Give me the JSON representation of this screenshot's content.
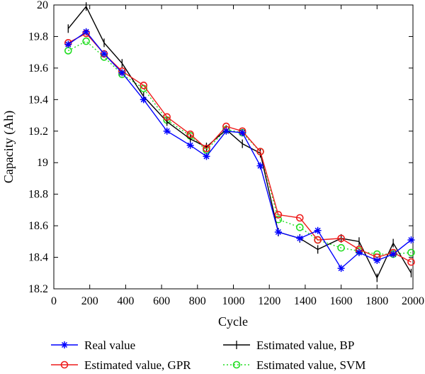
{
  "chart_data": {
    "type": "line",
    "xlabel": "Cycle",
    "ylabel": "Capacity (Ah)",
    "xlim": [
      0,
      2000
    ],
    "ylim": [
      18.2,
      20
    ],
    "xticks": [
      "0",
      "200",
      "400",
      "600",
      "800",
      "1000",
      "1200",
      "1400",
      "1600",
      "1800",
      "2000"
    ],
    "yticks": [
      "18.2",
      "18.4",
      "18.6",
      "18.8",
      "19",
      "19.2",
      "19.4",
      "19.6",
      "19.8",
      "20"
    ],
    "grid": false,
    "legend_position": "bottom",
    "series": [
      {
        "name": "Real value",
        "color": "#0000ff",
        "marker": "asterisk",
        "line": "solid",
        "x": [
          80,
          180,
          280,
          380,
          500,
          630,
          760,
          850,
          960,
          1050,
          1150,
          1250,
          1370,
          1470,
          1600,
          1700,
          1800,
          1890,
          1990
        ],
        "y": [
          19.75,
          19.83,
          19.69,
          19.57,
          19.4,
          19.2,
          19.11,
          19.04,
          19.2,
          19.19,
          18.98,
          18.56,
          18.52,
          18.57,
          18.33,
          18.43,
          18.38,
          18.42,
          18.51
        ]
      },
      {
        "name": "Estimated value, BP",
        "color": "#000000",
        "marker": "plus",
        "line": "solid",
        "x": [
          80,
          180,
          280,
          380,
          500,
          630,
          760,
          850,
          960,
          1050,
          1150,
          1250,
          1370,
          1470,
          1600,
          1700,
          1800,
          1890,
          1990
        ],
        "y": [
          19.85,
          19.99,
          19.76,
          19.63,
          19.42,
          19.26,
          19.15,
          19.1,
          19.21,
          19.12,
          19.06,
          18.56,
          18.52,
          18.45,
          18.52,
          18.5,
          18.27,
          18.49,
          18.3
        ]
      },
      {
        "name": "Estimated value, GPR",
        "color": "#ee1c1c",
        "marker": "circle",
        "line": "solid",
        "x": [
          80,
          180,
          280,
          380,
          500,
          630,
          760,
          850,
          960,
          1050,
          1150,
          1250,
          1370,
          1470,
          1600,
          1700,
          1800,
          1890,
          1990
        ],
        "y": [
          19.76,
          19.82,
          19.69,
          19.58,
          19.49,
          19.29,
          19.18,
          19.09,
          19.23,
          19.2,
          19.07,
          18.67,
          18.65,
          18.51,
          18.52,
          18.45,
          18.4,
          18.43,
          18.37
        ]
      },
      {
        "name": "Estimated value, SVM",
        "color": "#22dd22",
        "marker": "circle",
        "line": "dotted",
        "x": [
          80,
          180,
          280,
          380,
          500,
          630,
          760,
          850,
          960,
          1050,
          1150,
          1250,
          1370,
          1470,
          1600,
          1700,
          1800,
          1890,
          1990
        ],
        "y": [
          19.71,
          19.77,
          19.67,
          19.56,
          19.47,
          19.27,
          19.17,
          19.08,
          19.21,
          19.19,
          19.07,
          18.64,
          18.59,
          18.51,
          18.46,
          18.44,
          18.42,
          18.42,
          18.43
        ]
      }
    ]
  }
}
